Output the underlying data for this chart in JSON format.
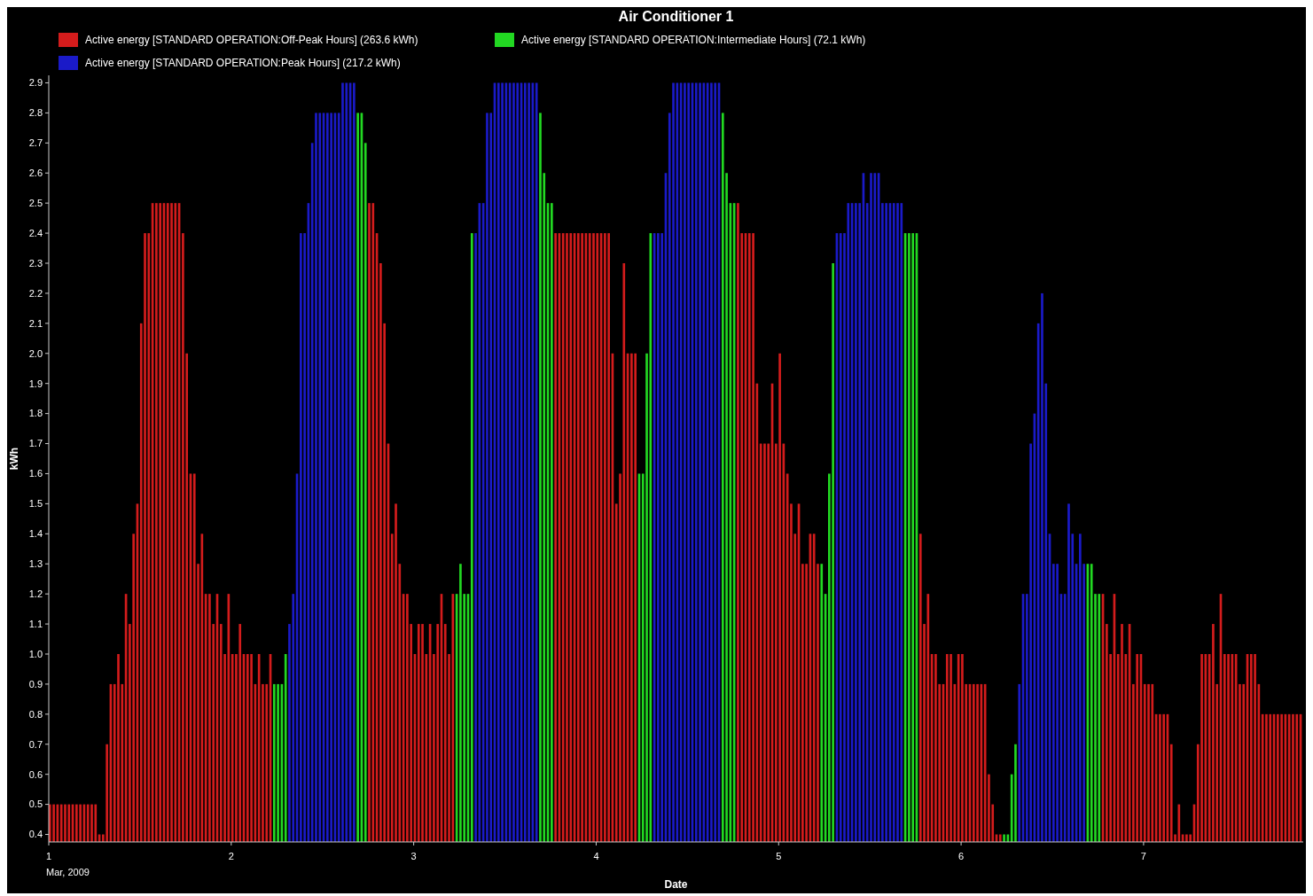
{
  "chart_data": {
    "type": "bar",
    "title": "Air Conditioner 1",
    "xlabel": "Date",
    "ylabel": "kWh",
    "legend": "top left",
    "grid": false,
    "xlim": [
      "2009-03-01T00:00",
      "2009-03-07T21:00"
    ],
    "xticks": [
      {
        "value": "2009-03-01",
        "label": "1\nMar, 2009"
      },
      {
        "value": "2009-03-02",
        "label": "2"
      },
      {
        "value": "2009-03-03",
        "label": "3"
      },
      {
        "value": "2009-03-04",
        "label": "4"
      },
      {
        "value": "2009-03-05",
        "label": "5"
      },
      {
        "value": "2009-03-06",
        "label": "6"
      },
      {
        "value": "2009-03-07",
        "label": "7"
      }
    ],
    "ylim": [
      0.375,
      2.925
    ],
    "yticks": [
      0.4,
      0.5,
      0.6,
      0.7,
      0.8,
      0.9,
      {
        "value": 1.0,
        "label": "1.0"
      },
      1.1,
      1.2,
      1.3,
      1.4,
      1.5,
      1.6,
      1.7,
      1.8,
      1.9,
      {
        "value": 2.0,
        "label": "2.0"
      },
      2.1,
      2.2,
      2.3,
      2.4,
      2.5,
      2.6,
      2.7,
      2.8,
      2.9
    ],
    "series": [
      {
        "name": "Active energy [STANDARD OPERATION:Off-Peak Hours] (263.6 kWh)",
        "color": "#d41c1c",
        "x": [
          "2009-03-01T00:00",
          "2009-03-01T00:30",
          "2009-03-01T01:00",
          "2009-03-01T01:30",
          "2009-03-01T02:00",
          "2009-03-01T02:30",
          "2009-03-01T03:00",
          "2009-03-01T03:30",
          "2009-03-01T04:00",
          "2009-03-01T04:30",
          "2009-03-01T05:00",
          "2009-03-01T05:30",
          "2009-03-01T06:00",
          "2009-03-01T06:30",
          "2009-03-01T07:00",
          "2009-03-01T07:30",
          "2009-03-01T08:00",
          "2009-03-01T08:30",
          "2009-03-01T09:00",
          "2009-03-01T09:30",
          "2009-03-01T10:00",
          "2009-03-01T10:30",
          "2009-03-01T11:00",
          "2009-03-01T11:30",
          "2009-03-01T12:00",
          "2009-03-01T12:30",
          "2009-03-01T13:00",
          "2009-03-01T13:30",
          "2009-03-01T14:00",
          "2009-03-01T14:30",
          "2009-03-01T15:00",
          "2009-03-01T15:30",
          "2009-03-01T16:00",
          "2009-03-01T16:30",
          "2009-03-01T17:00",
          "2009-03-01T17:30",
          "2009-03-01T18:00",
          "2009-03-01T18:30",
          "2009-03-01T19:00",
          "2009-03-01T19:30",
          "2009-03-01T20:00",
          "2009-03-01T20:30",
          "2009-03-01T21:00",
          "2009-03-01T21:30",
          "2009-03-01T22:00",
          "2009-03-01T22:30",
          "2009-03-01T23:00",
          "2009-03-01T23:30",
          "2009-03-02T00:00",
          "2009-03-02T00:30",
          "2009-03-02T01:00",
          "2009-03-02T01:30",
          "2009-03-02T02:00",
          "2009-03-02T02:30",
          "2009-03-02T03:00",
          "2009-03-02T03:30",
          "2009-03-02T04:00",
          "2009-03-02T04:30",
          "2009-03-02T05:00",
          "2009-03-02T18:00",
          "2009-03-02T18:30",
          "2009-03-02T19:00",
          "2009-03-02T19:30",
          "2009-03-02T20:00",
          "2009-03-02T20:30",
          "2009-03-02T21:00",
          "2009-03-02T21:30",
          "2009-03-02T22:00",
          "2009-03-02T22:30",
          "2009-03-02T23:00",
          "2009-03-02T23:30",
          "2009-03-03T00:00",
          "2009-03-03T00:30",
          "2009-03-03T01:00",
          "2009-03-03T01:30",
          "2009-03-03T02:00",
          "2009-03-03T02:30",
          "2009-03-03T03:00",
          "2009-03-03T03:30",
          "2009-03-03T04:00",
          "2009-03-03T04:30",
          "2009-03-03T05:00",
          "2009-03-03T18:30",
          "2009-03-03T19:00",
          "2009-03-03T19:30",
          "2009-03-03T20:00",
          "2009-03-03T20:30",
          "2009-03-03T21:00",
          "2009-03-03T21:30",
          "2009-03-03T22:00",
          "2009-03-03T22:30",
          "2009-03-03T23:00",
          "2009-03-03T23:30",
          "2009-03-04T00:00",
          "2009-03-04T00:30",
          "2009-03-04T01:00",
          "2009-03-04T01:30",
          "2009-03-04T02:00",
          "2009-03-04T02:30",
          "2009-03-04T03:00",
          "2009-03-04T03:30",
          "2009-03-04T04:00",
          "2009-03-04T04:30",
          "2009-03-04T05:00",
          "2009-03-04T18:30",
          "2009-03-04T19:00",
          "2009-03-04T19:30",
          "2009-03-04T20:00",
          "2009-03-04T20:30",
          "2009-03-04T21:00",
          "2009-03-04T21:30",
          "2009-03-04T22:00",
          "2009-03-04T22:30",
          "2009-03-04T23:00",
          "2009-03-04T23:30",
          "2009-03-05T00:00",
          "2009-03-05T00:30",
          "2009-03-05T01:00",
          "2009-03-05T01:30",
          "2009-03-05T02:00",
          "2009-03-05T02:30",
          "2009-03-05T03:00",
          "2009-03-05T03:30",
          "2009-03-05T04:00",
          "2009-03-05T04:30",
          "2009-03-05T05:00",
          "2009-03-05T18:30",
          "2009-03-05T19:00",
          "2009-03-05T19:30",
          "2009-03-05T20:00",
          "2009-03-05T20:30",
          "2009-03-05T21:00",
          "2009-03-05T21:30",
          "2009-03-05T22:00",
          "2009-03-05T22:30",
          "2009-03-05T23:00",
          "2009-03-05T23:30",
          "2009-03-06T00:00",
          "2009-03-06T00:30",
          "2009-03-06T01:00",
          "2009-03-06T01:30",
          "2009-03-06T02:00",
          "2009-03-06T02:30",
          "2009-03-06T03:00",
          "2009-03-06T03:30",
          "2009-03-06T04:00",
          "2009-03-06T04:30",
          "2009-03-06T05:00",
          "2009-03-06T18:30",
          "2009-03-06T19:00",
          "2009-03-06T19:30",
          "2009-03-06T20:00",
          "2009-03-06T20:30",
          "2009-03-06T21:00",
          "2009-03-06T21:30",
          "2009-03-06T22:00",
          "2009-03-06T22:30",
          "2009-03-06T23:00",
          "2009-03-06T23:30",
          "2009-03-07T00:00",
          "2009-03-07T00:30",
          "2009-03-07T01:00",
          "2009-03-07T01:30",
          "2009-03-07T02:00",
          "2009-03-07T02:30",
          "2009-03-07T03:00",
          "2009-03-07T03:30",
          "2009-03-07T04:00",
          "2009-03-07T04:30",
          "2009-03-07T05:00",
          "2009-03-07T05:30",
          "2009-03-07T06:00",
          "2009-03-07T06:30",
          "2009-03-07T07:00",
          "2009-03-07T07:30",
          "2009-03-07T08:00",
          "2009-03-07T08:30",
          "2009-03-07T09:00",
          "2009-03-07T09:30",
          "2009-03-07T10:00",
          "2009-03-07T10:30",
          "2009-03-07T11:00",
          "2009-03-07T11:30",
          "2009-03-07T12:00",
          "2009-03-07T12:30",
          "2009-03-07T13:00",
          "2009-03-07T13:30",
          "2009-03-07T14:00",
          "2009-03-07T14:30",
          "2009-03-07T15:00",
          "2009-03-07T15:30",
          "2009-03-07T16:00",
          "2009-03-07T16:30",
          "2009-03-07T17:00",
          "2009-03-07T17:30",
          "2009-03-07T18:00",
          "2009-03-07T18:30",
          "2009-03-07T19:00",
          "2009-03-07T19:30",
          "2009-03-07T20:00",
          "2009-03-07T20:30"
        ],
        "values": [
          0.5,
          0.5,
          0.5,
          0.5,
          0.5,
          0.5,
          0.5,
          0.5,
          0.5,
          0.5,
          0.5,
          0.5,
          0.5,
          0.4,
          0.4,
          0.7,
          0.9,
          0.9,
          1.0,
          0.9,
          1.2,
          1.1,
          1.4,
          1.5,
          2.1,
          2.4,
          2.4,
          2.5,
          2.5,
          2.5,
          2.5,
          2.5,
          2.5,
          2.5,
          2.5,
          2.4,
          2.0,
          1.6,
          1.6,
          1.3,
          1.4,
          1.2,
          1.2,
          1.1,
          1.2,
          1.1,
          1.0,
          1.2,
          1.0,
          1.0,
          1.1,
          1.0,
          1.0,
          1.0,
          0.9,
          1.0,
          0.9,
          0.9,
          1.0,
          2.5,
          2.5,
          2.4,
          2.3,
          2.1,
          1.7,
          1.4,
          1.5,
          1.3,
          1.2,
          1.2,
          1.1,
          1.0,
          1.1,
          1.1,
          1.0,
          1.1,
          1.0,
          1.1,
          1.2,
          1.1,
          1.0,
          1.2,
          2.4,
          2.4,
          2.4,
          2.4,
          2.4,
          2.4,
          2.4,
          2.4,
          2.4,
          2.4,
          2.4,
          2.4,
          2.4,
          2.4,
          2.4,
          2.0,
          1.5,
          1.6,
          2.3,
          2.0,
          2.0,
          2.0,
          2.5,
          2.4,
          2.4,
          2.4,
          2.4,
          1.9,
          1.7,
          1.7,
          1.7,
          1.9,
          1.7,
          2.0,
          1.7,
          1.6,
          1.5,
          1.4,
          1.5,
          1.3,
          1.3,
          1.4,
          1.4,
          1.3,
          1.4,
          1.1,
          1.2,
          1.0,
          1.0,
          0.9,
          0.9,
          1.0,
          1.0,
          0.9,
          1.0,
          1.0,
          0.9,
          0.9,
          0.9,
          0.9,
          0.9,
          0.9,
          0.6,
          0.5,
          0.4,
          0.4,
          1.2,
          1.1,
          1.0,
          1.2,
          1.0,
          1.1,
          1.0,
          1.1,
          0.9,
          1.0,
          1.0,
          0.9,
          0.9,
          0.9,
          0.8,
          0.8,
          0.8,
          0.8,
          0.7,
          0.4,
          0.5,
          0.4,
          0.4,
          0.4,
          0.5,
          0.7,
          1.0,
          1.0,
          1.0,
          1.1,
          0.9,
          1.2,
          1.0,
          1.0,
          1.0,
          1.0,
          0.9,
          0.9,
          1.0,
          1.0,
          1.0,
          0.9,
          0.8,
          0.8,
          0.8,
          0.8,
          0.8,
          0.8,
          0.8,
          0.8,
          0.8,
          0.8,
          0.8
        ]
      },
      {
        "name": "Active energy [STANDARD OPERATION:Intermediate Hours] (72.1 kWh)",
        "color": "#22d822",
        "x": [
          "2009-03-02T05:30",
          "2009-03-02T06:00",
          "2009-03-02T06:30",
          "2009-03-02T07:00",
          "2009-03-02T16:30",
          "2009-03-02T17:00",
          "2009-03-02T17:30",
          "2009-03-03T05:30",
          "2009-03-03T06:00",
          "2009-03-03T06:30",
          "2009-03-03T07:00",
          "2009-03-03T07:30",
          "2009-03-03T16:30",
          "2009-03-03T17:00",
          "2009-03-03T17:30",
          "2009-03-03T18:00",
          "2009-03-04T05:30",
          "2009-03-04T06:00",
          "2009-03-04T06:30",
          "2009-03-04T07:00",
          "2009-03-04T16:30",
          "2009-03-04T17:00",
          "2009-03-04T17:30",
          "2009-03-04T18:00",
          "2009-03-05T05:30",
          "2009-03-05T06:00",
          "2009-03-05T06:30",
          "2009-03-05T07:00",
          "2009-03-05T16:30",
          "2009-03-05T17:00",
          "2009-03-05T17:30",
          "2009-03-05T18:00",
          "2009-03-06T05:30",
          "2009-03-06T06:00",
          "2009-03-06T06:30",
          "2009-03-06T07:00",
          "2009-03-06T16:30",
          "2009-03-06T17:00",
          "2009-03-06T17:30",
          "2009-03-06T18:00"
        ],
        "values": [
          0.9,
          0.9,
          0.9,
          1.0,
          2.8,
          2.8,
          2.7,
          1.2,
          1.3,
          1.2,
          1.2,
          2.4,
          2.8,
          2.6,
          2.5,
          2.5,
          1.6,
          1.6,
          2.0,
          2.4,
          2.8,
          2.6,
          2.5,
          2.5,
          1.3,
          1.2,
          1.6,
          2.3,
          2.4,
          2.4,
          2.4,
          2.4,
          0.4,
          0.4,
          0.6,
          0.7,
          1.3,
          1.3,
          1.2,
          1.2
        ]
      },
      {
        "name": "Active energy [STANDARD OPERATION:Peak Hours] (217.2 kWh)",
        "color": "#1a1ac8",
        "x": [
          "2009-03-02T07:30",
          "2009-03-02T08:00",
          "2009-03-02T08:30",
          "2009-03-02T09:00",
          "2009-03-02T09:30",
          "2009-03-02T10:00",
          "2009-03-02T10:30",
          "2009-03-02T11:00",
          "2009-03-02T11:30",
          "2009-03-02T12:00",
          "2009-03-02T12:30",
          "2009-03-02T13:00",
          "2009-03-02T13:30",
          "2009-03-02T14:00",
          "2009-03-02T14:30",
          "2009-03-02T15:00",
          "2009-03-02T15:30",
          "2009-03-02T16:00",
          "2009-03-03T08:00",
          "2009-03-03T08:30",
          "2009-03-03T09:00",
          "2009-03-03T09:30",
          "2009-03-03T10:00",
          "2009-03-03T10:30",
          "2009-03-03T11:00",
          "2009-03-03T11:30",
          "2009-03-03T12:00",
          "2009-03-03T12:30",
          "2009-03-03T13:00",
          "2009-03-03T13:30",
          "2009-03-03T14:00",
          "2009-03-03T14:30",
          "2009-03-03T15:00",
          "2009-03-03T15:30",
          "2009-03-03T16:00",
          "2009-03-04T07:30",
          "2009-03-04T08:00",
          "2009-03-04T08:30",
          "2009-03-04T09:00",
          "2009-03-04T09:30",
          "2009-03-04T10:00",
          "2009-03-04T10:30",
          "2009-03-04T11:00",
          "2009-03-04T11:30",
          "2009-03-04T12:00",
          "2009-03-04T12:30",
          "2009-03-04T13:00",
          "2009-03-04T13:30",
          "2009-03-04T14:00",
          "2009-03-04T14:30",
          "2009-03-04T15:00",
          "2009-03-04T15:30",
          "2009-03-04T16:00",
          "2009-03-05T07:30",
          "2009-03-05T08:00",
          "2009-03-05T08:30",
          "2009-03-05T09:00",
          "2009-03-05T09:30",
          "2009-03-05T10:00",
          "2009-03-05T10:30",
          "2009-03-05T11:00",
          "2009-03-05T11:30",
          "2009-03-05T12:00",
          "2009-03-05T12:30",
          "2009-03-05T13:00",
          "2009-03-05T13:30",
          "2009-03-05T14:00",
          "2009-03-05T14:30",
          "2009-03-05T15:00",
          "2009-03-05T15:30",
          "2009-03-05T16:00",
          "2009-03-06T07:30",
          "2009-03-06T08:00",
          "2009-03-06T08:30",
          "2009-03-06T09:00",
          "2009-03-06T09:30",
          "2009-03-06T10:00",
          "2009-03-06T10:30",
          "2009-03-06T11:00",
          "2009-03-06T11:30",
          "2009-03-06T12:00",
          "2009-03-06T12:30",
          "2009-03-06T13:00",
          "2009-03-06T13:30",
          "2009-03-06T14:00",
          "2009-03-06T14:30",
          "2009-03-06T15:00",
          "2009-03-06T15:30",
          "2009-03-06T16:00"
        ],
        "values": [
          1.1,
          1.2,
          1.6,
          2.4,
          2.4,
          2.5,
          2.7,
          2.8,
          2.8,
          2.8,
          2.8,
          2.8,
          2.8,
          2.8,
          2.9,
          2.9,
          2.9,
          2.9,
          2.4,
          2.5,
          2.5,
          2.8,
          2.8,
          2.9,
          2.9,
          2.9,
          2.9,
          2.9,
          2.9,
          2.9,
          2.9,
          2.9,
          2.9,
          2.9,
          2.9,
          2.4,
          2.4,
          2.4,
          2.6,
          2.8,
          2.9,
          2.9,
          2.9,
          2.9,
          2.9,
          2.9,
          2.9,
          2.9,
          2.9,
          2.9,
          2.9,
          2.9,
          2.9,
          2.4,
          2.4,
          2.4,
          2.5,
          2.5,
          2.5,
          2.5,
          2.6,
          2.5,
          2.6,
          2.6,
          2.6,
          2.5,
          2.5,
          2.5,
          2.5,
          2.5,
          2.5,
          0.9,
          1.2,
          1.2,
          1.7,
          1.8,
          2.1,
          2.2,
          1.9,
          1.4,
          1.3,
          1.3,
          1.2,
          1.2,
          1.5,
          1.4,
          1.3,
          1.4,
          1.3
        ]
      }
    ]
  }
}
